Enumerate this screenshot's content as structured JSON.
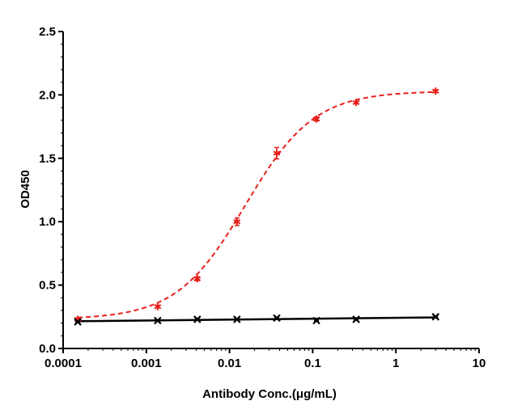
{
  "chart_data": {
    "type": "scatter",
    "xlabel": "Antibody Conc.(μg/mL)",
    "ylabel": "OD450",
    "x_scale": "log",
    "xlim": [
      0.0001,
      10
    ],
    "ylim": [
      0,
      2.5
    ],
    "x_ticks": [
      "0.0001",
      "0.001",
      "0.01",
      "0.1",
      "1",
      "10"
    ],
    "y_ticks": [
      "0.0",
      "0.5",
      "1.0",
      "1.5",
      "2.0",
      "2.5"
    ],
    "grid": false,
    "legend": "none",
    "series": [
      {
        "color": "#e8201a",
        "marker": "asterisk",
        "fit_line": "dashed sigmoid",
        "x": [
          0.00015,
          0.00137,
          0.0041,
          0.0123,
          0.037,
          0.111,
          0.333,
          3.0
        ],
        "y": [
          0.23,
          0.33,
          0.55,
          1.0,
          1.54,
          1.81,
          1.94,
          2.03
        ],
        "error": [
          0.01,
          0.01,
          0.015,
          0.03,
          0.045,
          0.015,
          0.01,
          0.01
        ]
      },
      {
        "color": "#000000",
        "marker": "x",
        "fit_line": "solid linear",
        "x": [
          0.00015,
          0.00137,
          0.0041,
          0.0123,
          0.037,
          0.111,
          0.333,
          3.0
        ],
        "y": [
          0.21,
          0.22,
          0.23,
          0.23,
          0.24,
          0.22,
          0.23,
          0.25
        ],
        "error": [
          0.005,
          0.005,
          0.005,
          0.005,
          0.005,
          0.005,
          0.005,
          0.005
        ]
      }
    ]
  }
}
